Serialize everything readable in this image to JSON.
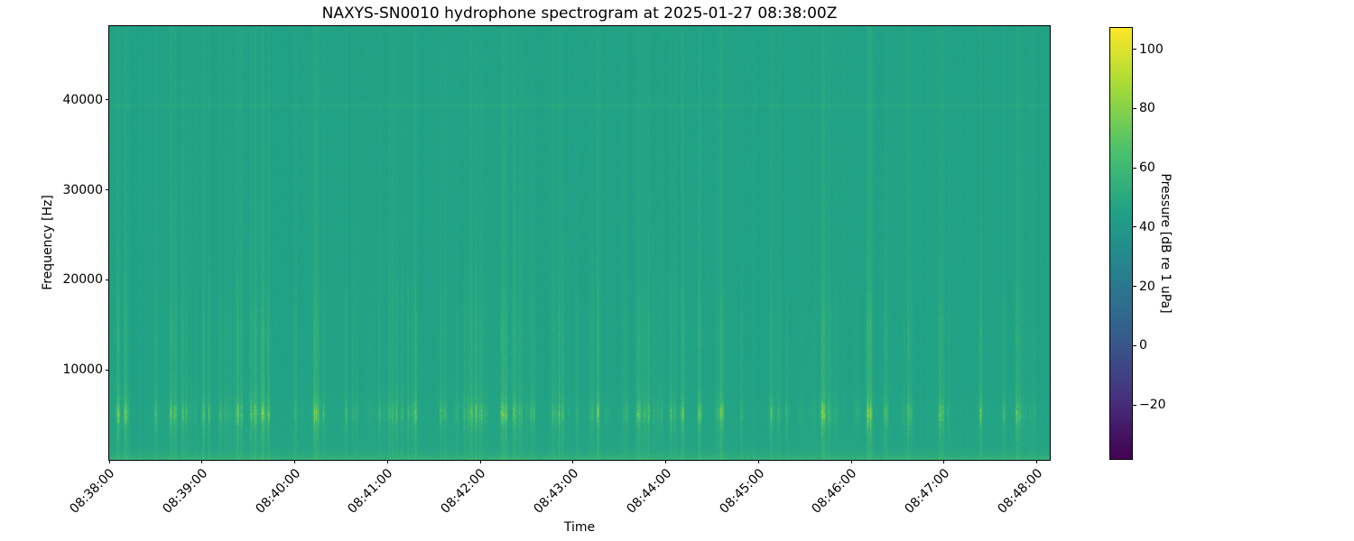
{
  "figure": {
    "title": "NAXYS-SN0010 hydrophone spectrogram at 2025-01-27 08:38:00Z",
    "background_color": "#ffffff"
  },
  "chart_data": {
    "type": "heatmap",
    "subtype": "spectrogram",
    "title": "NAXYS-SN0010 hydrophone spectrogram at 2025-01-27 08:38:00Z",
    "xlabel": "Time",
    "ylabel": "Frequency [Hz]",
    "x_tick_labels": [
      "08:38:00",
      "08:39:00",
      "08:40:00",
      "08:41:00",
      "08:42:00",
      "08:43:00",
      "08:44:00",
      "08:45:00",
      "08:46:00",
      "08:47:00",
      "08:48:00"
    ],
    "x_tick_interval_seconds": 60,
    "x_start": "08:38:00",
    "x_end_approx": "08:48:09",
    "y_tick_values": [
      10000,
      20000,
      30000,
      40000
    ],
    "y_tick_labels": [
      "10000",
      "20000",
      "30000",
      "40000"
    ],
    "ylim_hz": [
      0,
      48200
    ],
    "colormap": "viridis",
    "viridis_stops": [
      "#440154",
      "#46327e",
      "#365c8d",
      "#277f8e",
      "#1fa187",
      "#4ac16d",
      "#a0da39",
      "#fde725"
    ],
    "clim_db": [
      -38.5,
      107.5
    ],
    "colorbar_label": "Pressure [dB re 1 uPa]",
    "colorbar_tick_values": [
      100,
      80,
      60,
      40,
      20,
      0,
      -20
    ],
    "colorbar_tick_labels": [
      "100",
      "80",
      "60",
      "40",
      "20",
      "0",
      "−20"
    ],
    "background_level_db": 46,
    "background_color_hex": "#1fa187",
    "features": [
      {
        "kind": "broadband-transient-streaks",
        "freq_span_hz": [
          0,
          48000
        ],
        "peak_band_hz": [
          4000,
          6500
        ],
        "secondary_band_hz": [
          10000,
          18000
        ],
        "approx_count": 90,
        "peak_level_db": 86
      },
      {
        "kind": "low-frequency-bright-band",
        "freq_span_hz": [
          0,
          800
        ],
        "level_db": 62
      },
      {
        "kind": "narrowband-tonal",
        "freq_hz": 39400,
        "level_db": 49,
        "appearance": "faint dashed horizontal line"
      },
      {
        "kind": "ambient-background",
        "level_db": 46
      }
    ],
    "render_seed": 11
  }
}
